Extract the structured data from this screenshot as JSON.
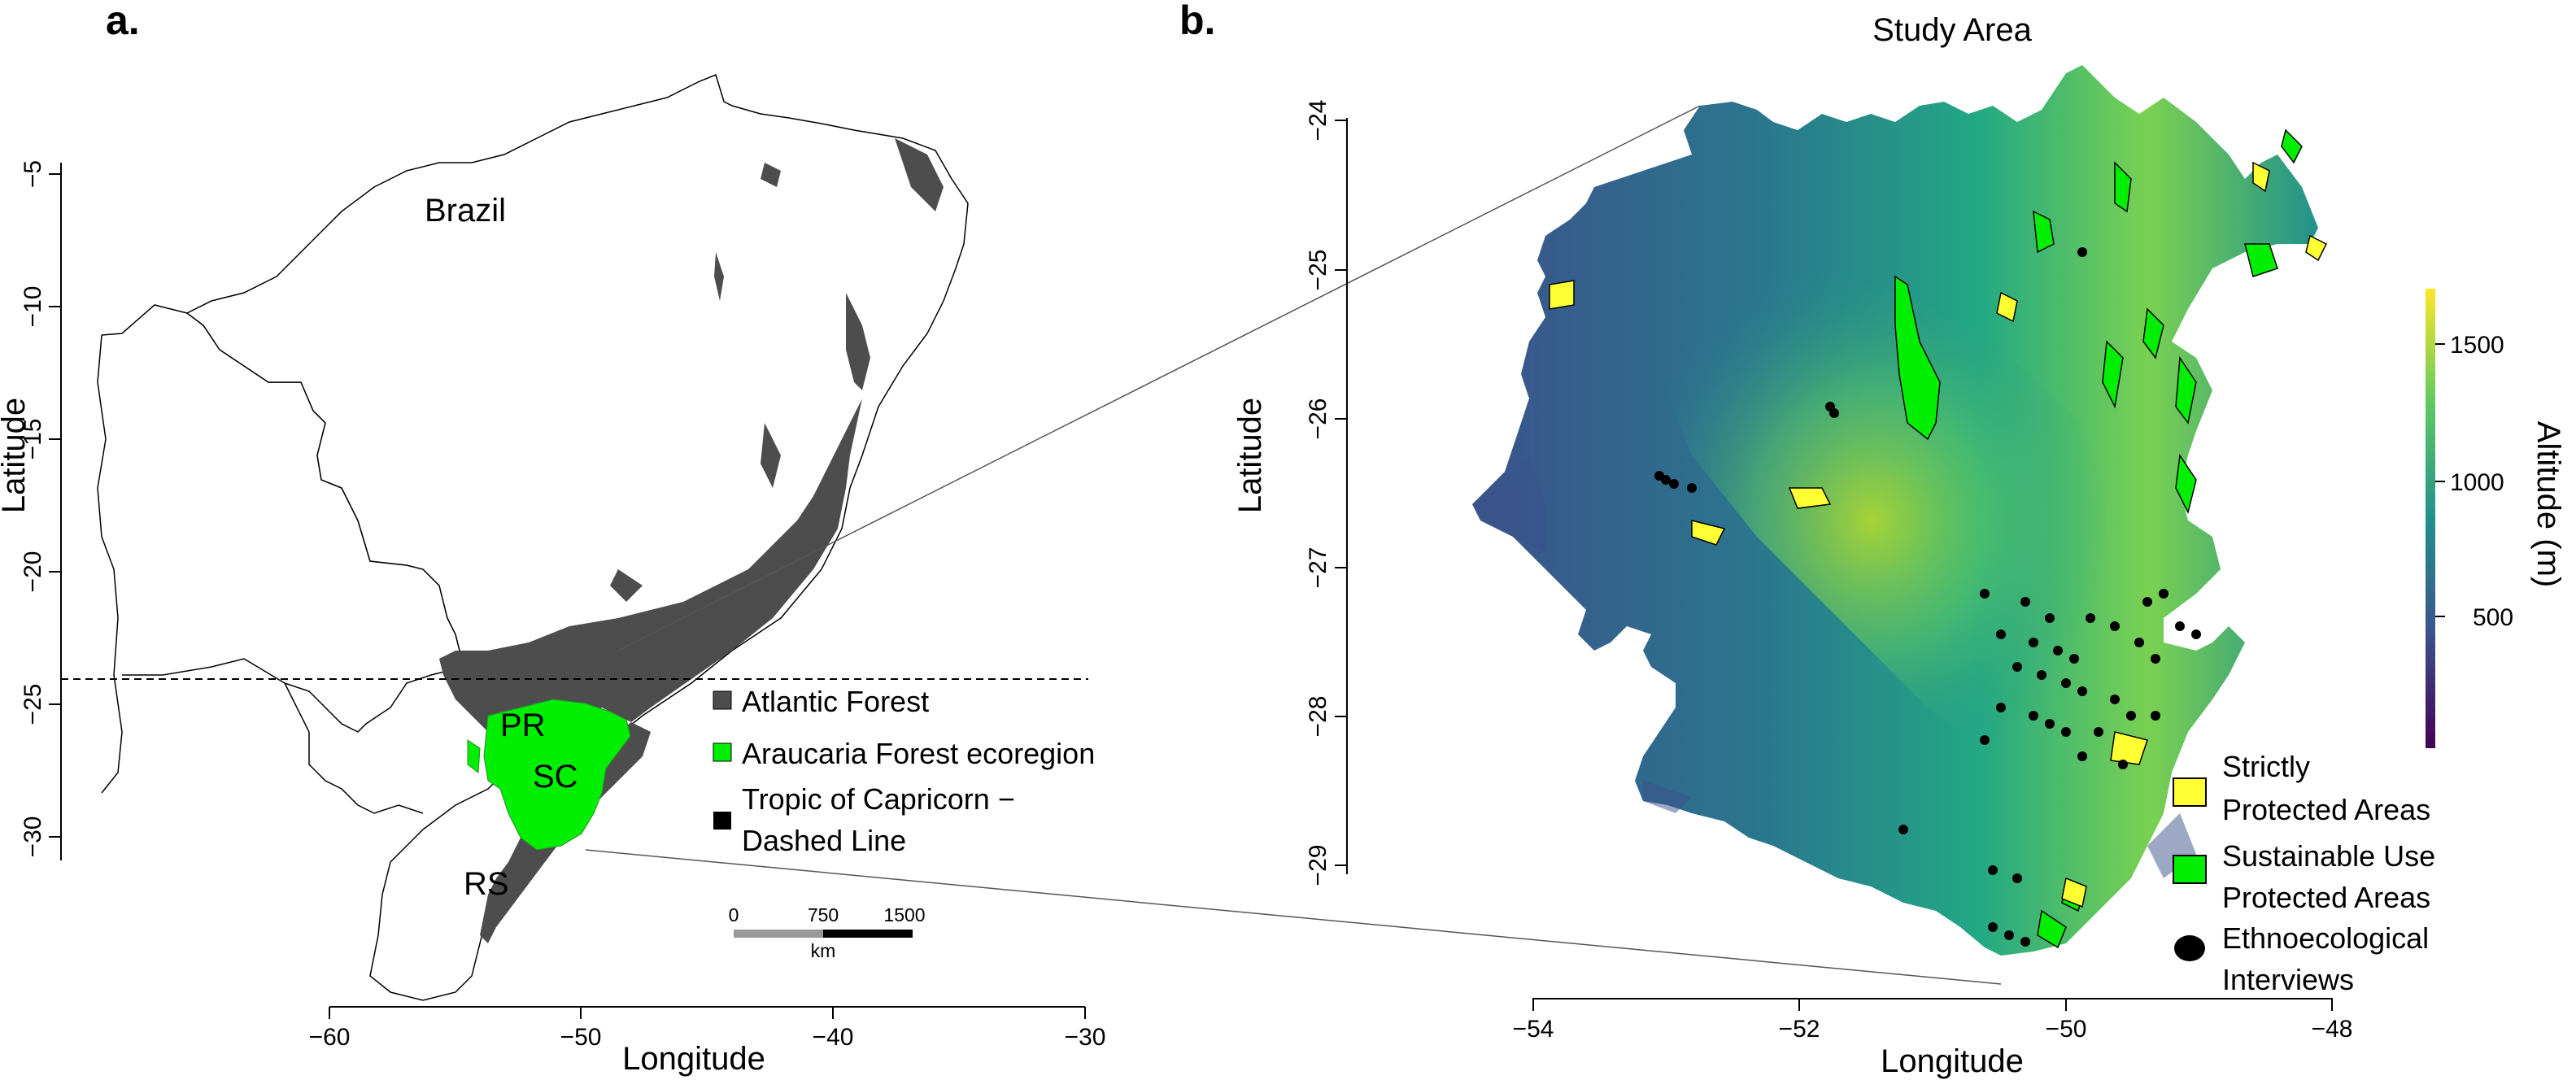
{
  "panel_a": {
    "label": "a.",
    "country_label": "Brazil",
    "x_axis_title": "Longitude",
    "y_axis_title": "Latitude",
    "x_ticks": [
      "−60",
      "−50",
      "−40",
      "−30"
    ],
    "y_ticks": [
      "−5",
      "−10",
      "−15",
      "−20",
      "−25",
      "−30"
    ],
    "states": [
      "PR",
      "SC",
      "RS"
    ],
    "legend": [
      {
        "label": "Atlantic Forest",
        "color": "#4d4d4d"
      },
      {
        "label": "Araucaria Forest ecoregion",
        "color": "#00ee00"
      },
      {
        "label": "Tropic of Capricorn −",
        "label2": "Dashed Line",
        "color": "#000000"
      }
    ],
    "scale_bar": {
      "ticks": [
        "0",
        "750",
        "1500"
      ],
      "unit": "km"
    }
  },
  "panel_b": {
    "label": "b.",
    "title": "Study Area",
    "x_axis_title": "Longitude",
    "y_axis_title": "Latitude",
    "x_ticks": [
      "−54",
      "−52",
      "−50",
      "−48"
    ],
    "y_ticks": [
      "−24",
      "−25",
      "−26",
      "−27",
      "−28",
      "−29"
    ],
    "colorbar": {
      "title": "Altitude (m)",
      "ticks": [
        "1500",
        "1000",
        "500"
      ],
      "colormap": [
        "#440154",
        "#3b528b",
        "#21918c",
        "#5ec962",
        "#fde725"
      ]
    },
    "legend": [
      {
        "line1": "Strictly",
        "line2": "Protected Areas",
        "color": "#ffff33"
      },
      {
        "line1": "Sustainable Use",
        "line2": "Protected Areas",
        "color": "#00ee00"
      },
      {
        "line1": "Ethnoecological",
        "line2": "Interviews",
        "color": "#000000"
      }
    ]
  }
}
